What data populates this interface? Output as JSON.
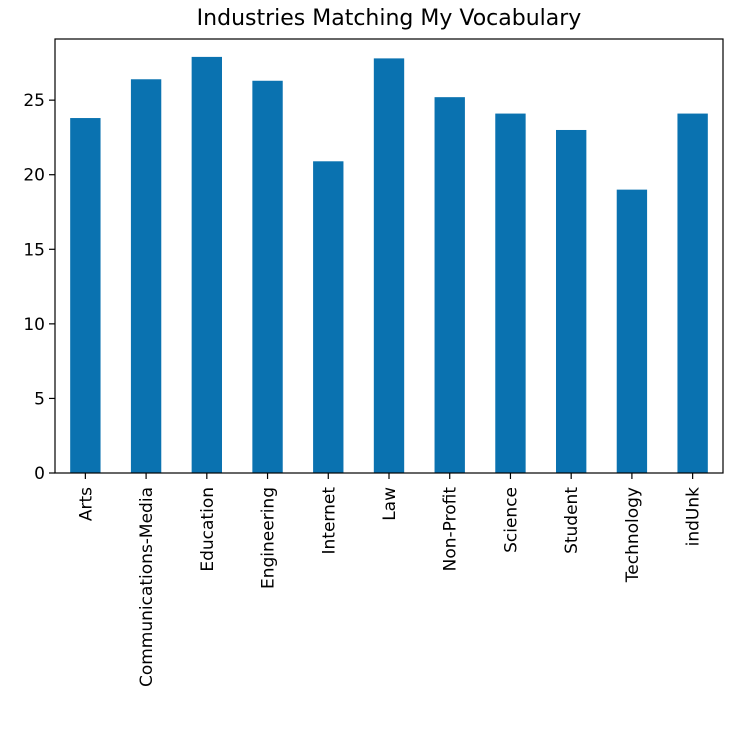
{
  "chart_data": {
    "type": "bar",
    "title": "Industries Matching My Vocabulary",
    "xlabel": "",
    "ylabel": "",
    "categories": [
      "Arts",
      "Communications-Media",
      "Education",
      "Engineering",
      "Internet",
      "Law",
      "Non-Profit",
      "Science",
      "Student",
      "Technology",
      "indUnk"
    ],
    "values": [
      23.8,
      26.4,
      27.9,
      26.3,
      20.9,
      27.8,
      25.2,
      24.1,
      23.0,
      19.0,
      24.1
    ],
    "ylim": [
      0,
      29.1
    ],
    "yticks": [
      0,
      5,
      10,
      15,
      20,
      25
    ],
    "grid": false,
    "legend": "none",
    "bar_color": "#0a72b0"
  }
}
